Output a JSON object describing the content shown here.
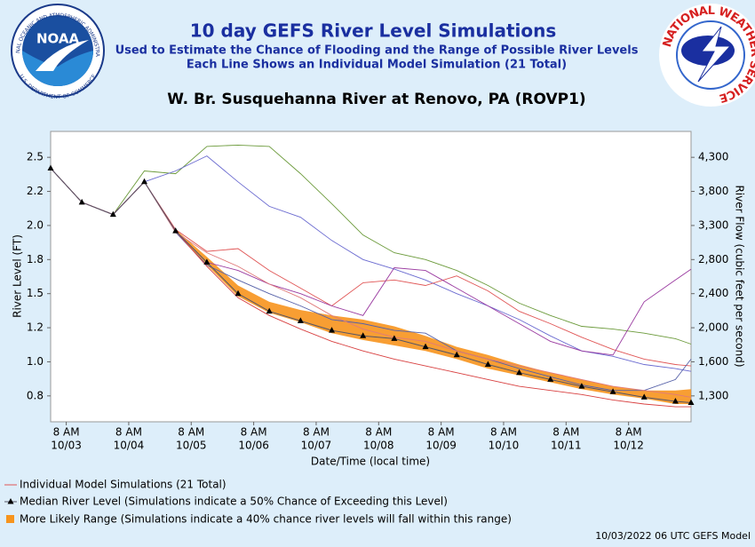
{
  "logos": {
    "noaa": "NOAA",
    "noaa_ring_top": "NATIONAL OCEANIC AND ATMOSPHERIC ADMINISTRATION",
    "noaa_ring_bottom": "U.S. DEPARTMENT OF COMMERCE",
    "nws": "NATIONAL WEATHER SERVICE"
  },
  "chart_data": {
    "type": "line",
    "title": "10 day GEFS River Level Simulations",
    "subtitle": [
      "Used to Estimate the Chance of Flooding and the Range of Possible River Levels",
      "Each Line Shows an Individual Model Simulation (21 Total)"
    ],
    "station": "W. Br. Susquehanna River at Renovo, PA (ROVP1)",
    "xlabel": "Date/Time (local time)",
    "ylabel": "River Level (FT)",
    "y2label": "River Flow (cubic feet per second)",
    "footer": "10/03/2022 06 UTC GEFS Model",
    "x": [
      "10/03 02:00",
      "10/03 14:00",
      "10/04 02:00",
      "10/04 14:00",
      "10/05 02:00",
      "10/05 14:00",
      "10/06 02:00",
      "10/06 14:00",
      "10/07 02:00",
      "10/07 14:00",
      "10/08 02:00",
      "10/08 14:00",
      "10/09 02:00",
      "10/09 14:00",
      "10/10 02:00",
      "10/10 14:00",
      "10/11 02:00",
      "10/11 14:00",
      "10/12 02:00",
      "10/12 14:00",
      "10/13 02:00",
      "10/13 08:00"
    ],
    "xlim": [
      "10/03 02:00",
      "10/13 08:00"
    ],
    "xticks": [
      {
        "value": "10/03 08:00",
        "label": [
          "8 AM",
          "10/03"
        ]
      },
      {
        "value": "10/04 08:00",
        "label": [
          "8 AM",
          "10/04"
        ]
      },
      {
        "value": "10/05 08:00",
        "label": [
          "8 AM",
          "10/05"
        ]
      },
      {
        "value": "10/06 08:00",
        "label": [
          "8 AM",
          "10/06"
        ]
      },
      {
        "value": "10/07 08:00",
        "label": [
          "8 AM",
          "10/07"
        ]
      },
      {
        "value": "10/08 08:00",
        "label": [
          "8 AM",
          "10/08"
        ]
      },
      {
        "value": "10/09 08:00",
        "label": [
          "8 AM",
          "10/09"
        ]
      },
      {
        "value": "10/10 08:00",
        "label": [
          "8 AM",
          "10/10"
        ]
      },
      {
        "value": "10/11 08:00",
        "label": [
          "8 AM",
          "10/11"
        ]
      },
      {
        "value": "10/12 08:00",
        "label": [
          "8 AM",
          "10/12"
        ]
      }
    ],
    "ylim": [
      0.56,
      2.69
    ],
    "yticks": [
      {
        "value": 0.75,
        "label": "0.8"
      },
      {
        "value": 1.0,
        "label": "1.0"
      },
      {
        "value": 1.25,
        "label": "1.2"
      },
      {
        "value": 1.5,
        "label": "1.5"
      },
      {
        "value": 1.75,
        "label": "1.8"
      },
      {
        "value": 2.0,
        "label": "2.0"
      },
      {
        "value": 2.25,
        "label": "2.2"
      },
      {
        "value": 2.5,
        "label": "2.5"
      }
    ],
    "y2ticks": [
      {
        "value": 1300,
        "label": "1,300"
      },
      {
        "value": 1600,
        "label": "1,600"
      },
      {
        "value": 2000,
        "label": "2,000"
      },
      {
        "value": 2400,
        "label": "2,400"
      },
      {
        "value": 2800,
        "label": "2,800"
      },
      {
        "value": 3300,
        "label": "3,300"
      },
      {
        "value": 3800,
        "label": "3,800"
      },
      {
        "value": 4300,
        "label": "4,300"
      }
    ],
    "band": {
      "name": "More Likely Range (Simulations indicate a 40% chance river levels will fall within this range)",
      "color": "#f7941d",
      "low": [
        null,
        null,
        null,
        null,
        1.95,
        1.71,
        1.48,
        1.36,
        1.29,
        1.21,
        1.16,
        1.12,
        1.08,
        1.02,
        0.95,
        0.9,
        0.85,
        0.8,
        0.76,
        0.73,
        0.69,
        0.69
      ],
      "high": [
        null,
        null,
        null,
        null,
        1.97,
        1.77,
        1.56,
        1.44,
        1.38,
        1.34,
        1.31,
        1.26,
        1.19,
        1.11,
        1.05,
        0.98,
        0.92,
        0.87,
        0.82,
        0.79,
        0.79,
        0.8
      ]
    },
    "simulations": {
      "name": "Individual Model Simulations (21 Total)",
      "lines": [
        {
          "color": "#6b9a3a",
          "values": [
            2.42,
            2.17,
            2.08,
            2.4,
            2.38,
            2.58,
            2.59,
            2.58,
            2.38,
            2.16,
            1.93,
            1.8,
            1.75,
            1.67,
            1.56,
            1.43,
            1.34,
            1.26,
            1.24,
            1.21,
            1.17,
            1.13
          ]
        },
        {
          "color": "#6a6ad0",
          "values": [
            2.42,
            2.17,
            2.08,
            2.32,
            2.4,
            2.51,
            2.32,
            2.14,
            2.06,
            1.89,
            1.75,
            1.68,
            1.6,
            1.5,
            1.41,
            1.31,
            1.19,
            1.08,
            1.04,
            0.98,
            0.95,
            0.93
          ]
        },
        {
          "color": "#e05555",
          "values": [
            2.42,
            2.17,
            2.08,
            2.32,
            1.97,
            1.81,
            1.83,
            1.67,
            1.54,
            1.41,
            1.58,
            1.6,
            1.56,
            1.63,
            1.52,
            1.37,
            1.28,
            1.18,
            1.09,
            1.02,
            0.98,
            0.97
          ]
        },
        {
          "color": "#9a3aa0",
          "values": [
            2.42,
            2.17,
            2.08,
            2.32,
            1.96,
            1.73,
            1.67,
            1.57,
            1.5,
            1.41,
            1.34,
            1.69,
            1.67,
            1.54,
            1.41,
            1.28,
            1.15,
            1.08,
            1.05,
            1.44,
            1.6,
            1.68
          ]
        },
        {
          "color": "#5560a8",
          "values": [
            2.42,
            2.17,
            2.08,
            2.32,
            1.95,
            1.71,
            1.6,
            1.5,
            1.41,
            1.31,
            1.28,
            1.23,
            1.21,
            1.08,
            1.02,
            0.95,
            0.89,
            0.83,
            0.79,
            0.79,
            0.87,
            1.02
          ]
        },
        {
          "color": "#d84040",
          "values": [
            2.42,
            2.17,
            2.08,
            2.32,
            1.96,
            1.7,
            1.47,
            1.34,
            1.24,
            1.15,
            1.08,
            1.02,
            0.97,
            0.92,
            0.87,
            0.82,
            0.79,
            0.76,
            0.72,
            0.69,
            0.67,
            0.67
          ]
        },
        {
          "color": "#e07a7a",
          "values": [
            2.42,
            2.17,
            2.08,
            2.32,
            1.95,
            1.8,
            1.7,
            1.57,
            1.47,
            1.34,
            1.24,
            1.18,
            1.15,
            1.08,
            1.02,
            0.97,
            0.92,
            0.87,
            0.82,
            0.79,
            0.76,
            0.74
          ]
        }
      ]
    },
    "median": {
      "name": "Median River Level (Simulations indicate a 50% Chance of Exceeding this Level)",
      "color": "#000000",
      "values": [
        2.42,
        2.17,
        2.08,
        2.32,
        1.96,
        1.73,
        1.5,
        1.37,
        1.3,
        1.23,
        1.19,
        1.17,
        1.11,
        1.05,
        0.98,
        0.92,
        0.87,
        0.82,
        0.78,
        0.74,
        0.71,
        0.7
      ]
    }
  }
}
